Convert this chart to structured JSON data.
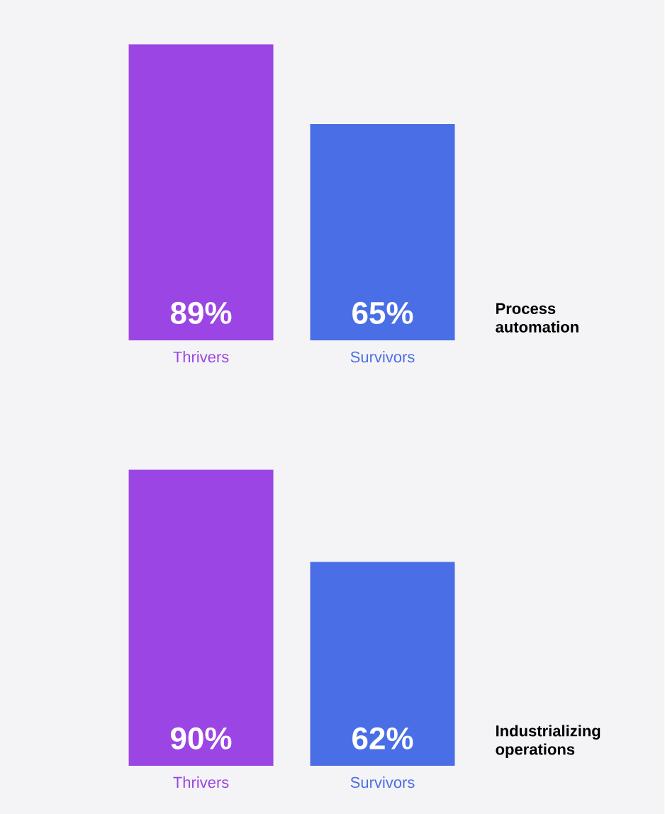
{
  "chart_data": [
    {
      "type": "bar",
      "annotations": [
        "Process automation"
      ],
      "categories": [
        "Thrivers",
        "Survivors"
      ],
      "values": [
        89,
        65
      ],
      "colors": [
        "#9b45e4",
        "#4a6ee6"
      ],
      "value_labels": [
        "89%",
        "65%"
      ]
    },
    {
      "type": "bar",
      "annotations": [
        "Industrializing operations"
      ],
      "categories": [
        "Thrivers",
        "Survivors"
      ],
      "values": [
        90,
        62
      ],
      "colors": [
        "#9b45e4",
        "#4a6ee6"
      ],
      "value_labels": [
        "90%",
        "62%"
      ]
    }
  ]
}
